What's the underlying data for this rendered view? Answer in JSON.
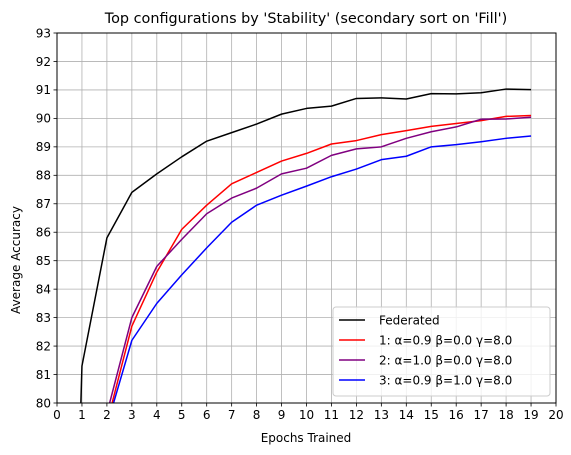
{
  "chart_data": {
    "type": "line",
    "title": "Top configurations by 'Stability' (secondary sort on 'Fill')",
    "xlabel": "Epochs Trained",
    "ylabel": "Average Accuracy",
    "xlim": [
      0,
      20
    ],
    "ylim": [
      80,
      93
    ],
    "xticks": [
      "0",
      "1",
      "2",
      "3",
      "4",
      "5",
      "6",
      "7",
      "8",
      "9",
      "10",
      "11",
      "12",
      "13",
      "14",
      "15",
      "16",
      "17",
      "18",
      "19",
      "20"
    ],
    "yticks": [
      "80",
      "81",
      "82",
      "83",
      "84",
      "85",
      "86",
      "87",
      "88",
      "89",
      "90",
      "91",
      "92",
      "93"
    ],
    "grid": true,
    "legend_position": "lower-right",
    "x": [
      1,
      2,
      3,
      4,
      5,
      6,
      7,
      8,
      9,
      10,
      11,
      12,
      13,
      14,
      15,
      16,
      17,
      18,
      19
    ],
    "series": [
      {
        "name": "Federated",
        "color": "#000000",
        "points": [
          [
            0.95,
            79.8
          ],
          [
            1,
            81.3
          ],
          [
            2,
            85.8
          ],
          [
            3,
            87.4
          ],
          [
            4,
            88.05
          ],
          [
            5,
            88.65
          ],
          [
            6,
            89.2
          ],
          [
            7,
            89.5
          ],
          [
            8,
            89.8
          ],
          [
            9,
            90.15
          ],
          [
            10,
            90.35
          ],
          [
            11,
            90.43
          ],
          [
            12,
            90.7
          ],
          [
            13,
            90.72
          ],
          [
            14,
            90.68
          ],
          [
            15,
            90.87
          ],
          [
            16,
            90.86
          ],
          [
            17,
            90.9
          ],
          [
            18,
            91.03
          ],
          [
            19,
            91.01
          ]
        ]
      },
      {
        "name": "1: α=0.9  β=0.0  γ=8.0",
        "color": "#ff0000",
        "points": [
          [
            2.15,
            79.8
          ],
          [
            3,
            82.7
          ],
          [
            4,
            84.6
          ],
          [
            5,
            86.1
          ],
          [
            6,
            86.95
          ],
          [
            7,
            87.7
          ],
          [
            8,
            88.1
          ],
          [
            9,
            88.5
          ],
          [
            10,
            88.77
          ],
          [
            11,
            89.1
          ],
          [
            12,
            89.22
          ],
          [
            13,
            89.43
          ],
          [
            14,
            89.57
          ],
          [
            15,
            89.72
          ],
          [
            16,
            89.82
          ],
          [
            17,
            89.92
          ],
          [
            18,
            90.07
          ],
          [
            19,
            90.1
          ]
        ]
      },
      {
        "name": "2: α=1.0  β=0.0  γ=8.0",
        "color": "#800080",
        "points": [
          [
            2.05,
            79.8
          ],
          [
            3,
            83.0
          ],
          [
            4,
            84.8
          ],
          [
            5,
            85.75
          ],
          [
            6,
            86.65
          ],
          [
            7,
            87.2
          ],
          [
            8,
            87.55
          ],
          [
            9,
            88.05
          ],
          [
            10,
            88.25
          ],
          [
            11,
            88.7
          ],
          [
            12,
            88.93
          ],
          [
            13,
            89.0
          ],
          [
            14,
            89.3
          ],
          [
            15,
            89.53
          ],
          [
            16,
            89.7
          ],
          [
            17,
            89.97
          ],
          [
            18,
            89.98
          ],
          [
            19,
            90.04
          ]
        ]
      },
      {
        "name": "3: α=0.9  β=1.0  γ=8.0",
        "color": "#0000ff",
        "points": [
          [
            2.2,
            79.8
          ],
          [
            3,
            82.2
          ],
          [
            4,
            83.5
          ],
          [
            5,
            84.5
          ],
          [
            6,
            85.45
          ],
          [
            7,
            86.35
          ],
          [
            8,
            86.95
          ],
          [
            9,
            87.3
          ],
          [
            10,
            87.62
          ],
          [
            11,
            87.95
          ],
          [
            12,
            88.22
          ],
          [
            13,
            88.55
          ],
          [
            14,
            88.67
          ],
          [
            15,
            89.0
          ],
          [
            16,
            89.08
          ],
          [
            17,
            89.18
          ],
          [
            18,
            89.3
          ],
          [
            19,
            89.38
          ]
        ]
      }
    ]
  }
}
